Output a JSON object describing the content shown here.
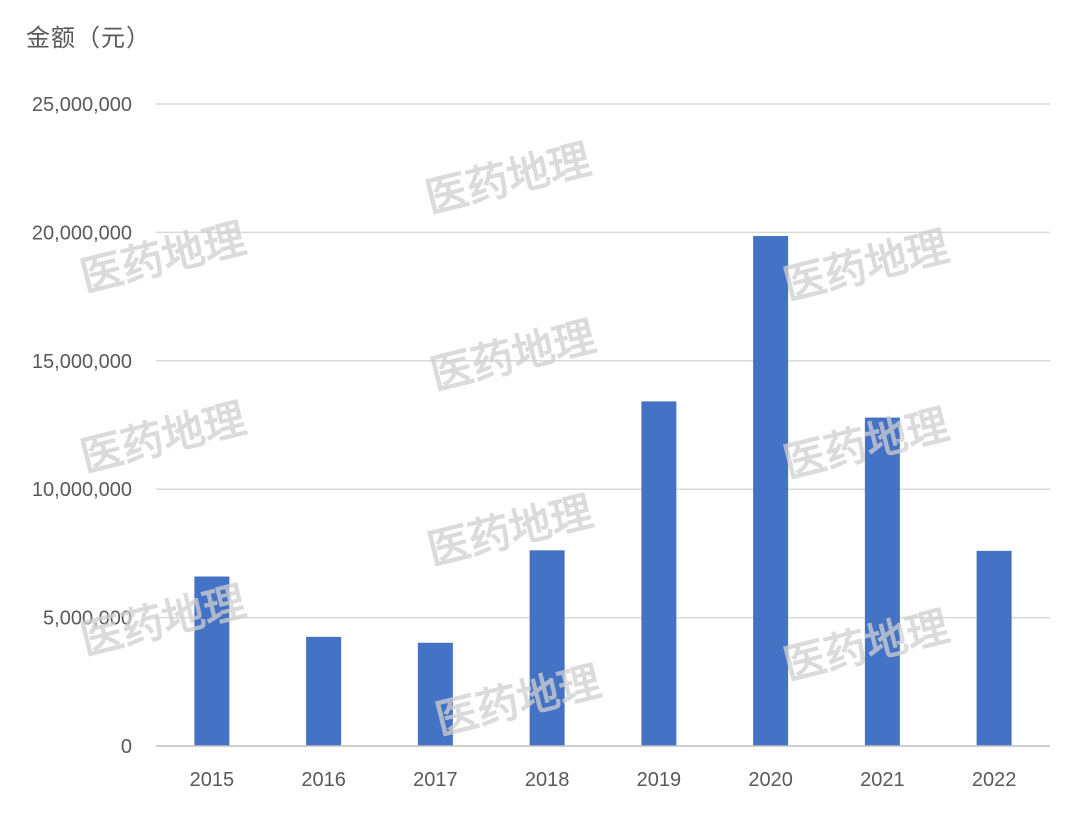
{
  "axis_unit_label": "金额（元）",
  "watermark_text": "医药地理",
  "colors": {
    "bar": "#4472C4",
    "grid": "#D9D9D9",
    "axis": "#BFBFBF",
    "text": "#595959"
  },
  "chart_data": {
    "type": "bar",
    "title": "",
    "xlabel": "",
    "ylabel": "金额（元）",
    "categories": [
      "2015",
      "2016",
      "2017",
      "2018",
      "2019",
      "2020",
      "2021",
      "2022"
    ],
    "values": [
      6600000,
      4250000,
      4020000,
      7620000,
      13420000,
      19860000,
      12790000,
      7600000
    ],
    "ylim": [
      0,
      25000000
    ],
    "yticks": [
      0,
      5000000,
      10000000,
      15000000,
      20000000,
      25000000
    ],
    "ytick_labels": [
      "0",
      "5,000,000",
      "10,000,000",
      "15,000,000",
      "20,000,000",
      "25,000,000"
    ],
    "grid": true,
    "legend": "none"
  }
}
